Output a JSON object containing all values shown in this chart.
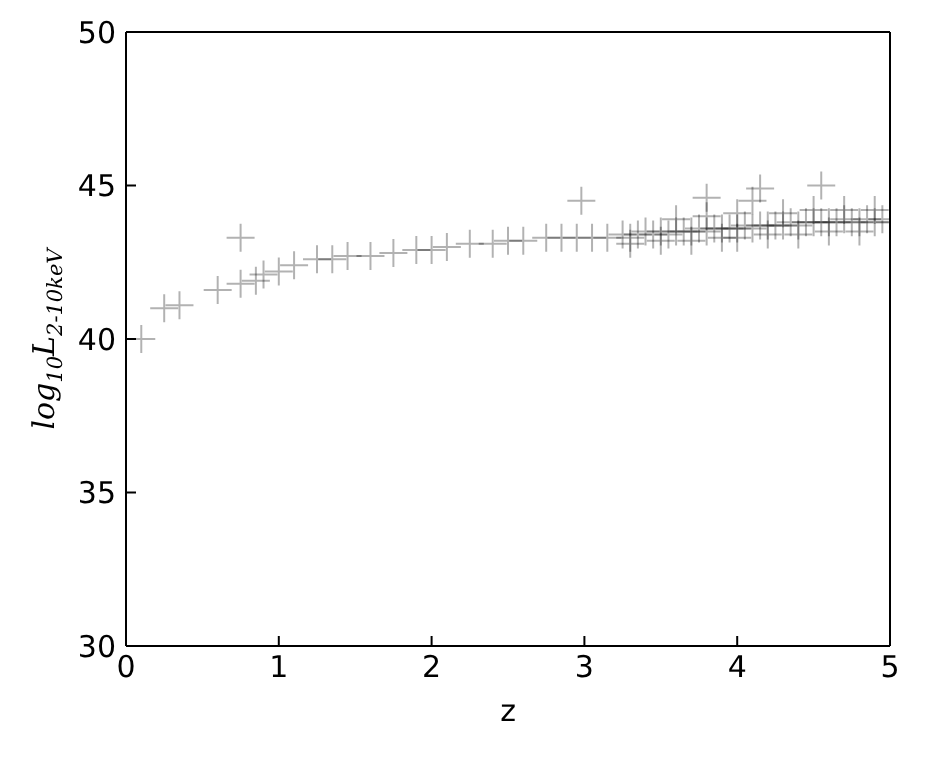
{
  "chart_data": {
    "type": "scatter",
    "xlabel": "z",
    "ylabel": "log$_{10}$L$_{2-10keV}$",
    "xlim": [
      0,
      5
    ],
    "ylim": [
      30,
      50
    ],
    "xticks": [
      0,
      1,
      2,
      3,
      4,
      5
    ],
    "yticks": [
      30,
      35,
      40,
      45,
      50
    ],
    "legend": false,
    "marker": "cross",
    "series": [
      {
        "color": "#000000",
        "x": [
          0.1,
          0.25,
          0.35,
          0.6,
          0.75,
          0.75,
          0.85,
          0.9,
          1.0,
          1.1,
          1.25,
          1.35,
          1.45,
          1.6,
          1.75,
          1.9,
          2.0,
          2.1,
          2.25,
          2.4,
          2.5,
          2.6,
          2.75,
          2.85,
          2.95,
          2.98,
          3.05,
          3.15,
          3.25,
          3.3,
          3.35,
          3.4,
          3.45,
          3.5,
          3.55,
          3.6,
          3.65,
          3.7,
          3.75,
          3.8,
          3.8,
          3.85,
          3.9,
          3.95,
          4.0,
          4.05,
          4.1,
          4.1,
          4.15,
          4.15,
          4.2,
          4.25,
          4.3,
          4.35,
          4.4,
          4.45,
          4.5,
          4.55,
          4.55,
          4.6,
          4.65,
          4.7,
          4.75,
          4.8,
          4.85,
          4.9,
          4.95,
          5.0,
          3.3,
          3.5,
          3.7,
          3.9,
          4.0,
          4.2,
          4.4,
          4.6,
          4.8,
          3.6,
          3.8,
          4.0,
          4.3,
          4.5,
          4.7,
          4.9
        ],
        "values": [
          40.0,
          41.0,
          41.1,
          41.6,
          43.3,
          41.8,
          41.9,
          42.1,
          42.2,
          42.4,
          42.6,
          42.6,
          42.7,
          42.7,
          42.8,
          42.9,
          42.9,
          43.0,
          43.1,
          43.1,
          43.2,
          43.2,
          43.3,
          43.3,
          43.3,
          44.5,
          43.3,
          43.3,
          43.4,
          43.3,
          43.4,
          43.5,
          43.4,
          43.5,
          43.4,
          43.5,
          43.5,
          43.5,
          43.6,
          44.6,
          43.5,
          43.6,
          43.6,
          43.6,
          43.6,
          43.7,
          44.5,
          43.6,
          44.9,
          43.7,
          43.7,
          43.7,
          43.7,
          43.8,
          43.7,
          43.8,
          43.8,
          45.0,
          43.8,
          43.8,
          43.8,
          43.9,
          43.8,
          43.8,
          43.9,
          43.8,
          43.9,
          43.8,
          43.1,
          43.2,
          43.2,
          43.3,
          43.3,
          43.4,
          43.4,
          43.5,
          43.5,
          43.9,
          44.0,
          44.1,
          44.1,
          44.2,
          44.2,
          44.2
        ]
      }
    ]
  }
}
